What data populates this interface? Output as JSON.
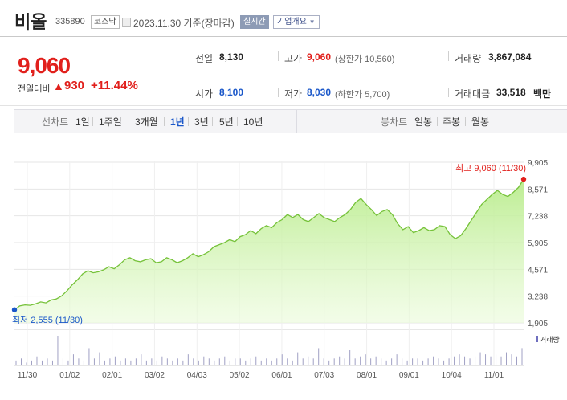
{
  "header": {
    "name": "비올",
    "code": "335890",
    "market": "코스닥",
    "base_date": "2023.11.30  기준(장마감)",
    "realtime_label": "실시간",
    "overview_label": "기업개요",
    "overview_caret": "▼"
  },
  "price": {
    "current": "9,060",
    "change_label": "전일대비",
    "change_arrow": "▲",
    "change_amount": "930",
    "change_rate": "+11.44%"
  },
  "stats": {
    "prev_close": {
      "label": "전일",
      "value": "8,130"
    },
    "high": {
      "label": "고가",
      "value": "9,060",
      "sub": "(상한가 10,560)"
    },
    "volume": {
      "label": "거래량",
      "value": "3,867,084"
    },
    "open": {
      "label": "시가",
      "value": "8,100"
    },
    "low": {
      "label": "저가",
      "value": "8,030",
      "sub": "(하한가 5,700)"
    },
    "trade_value": {
      "label": "거래대금",
      "value": "33,518",
      "unit": "백만"
    }
  },
  "tabs": {
    "line_label": "선차트",
    "periods": [
      "1일",
      "1주일",
      "3개월",
      "1년",
      "3년",
      "5년",
      "10년"
    ],
    "active_period": "1년",
    "candle_label": "봉차트",
    "candles": [
      "일봉",
      "주봉",
      "월봉"
    ]
  },
  "chart_data": {
    "type": "area",
    "y_ticks": [
      9905,
      8571,
      7238,
      5905,
      4571,
      3238,
      1905
    ],
    "y_tick_labels": [
      "9,905",
      "8,571",
      "7,238",
      "5,905",
      "4,571",
      "3,238",
      "1,905"
    ],
    "ylim": [
      1905,
      9905
    ],
    "x_tick_labels": [
      "11/30",
      "01/02",
      "02/01",
      "03/02",
      "04/03",
      "05/02",
      "06/01",
      "07/03",
      "08/01",
      "09/01",
      "10/04",
      "11/01"
    ],
    "series_values": [
      2555,
      2750,
      2800,
      2780,
      2850,
      2950,
      2900,
      3050,
      3100,
      3250,
      3500,
      3800,
      4050,
      4350,
      4500,
      4400,
      4450,
      4550,
      4700,
      4600,
      4800,
      5050,
      5150,
      5000,
      4950,
      5050,
      5100,
      4900,
      4950,
      5150,
      5050,
      4900,
      5000,
      5150,
      5350,
      5200,
      5300,
      5450,
      5700,
      5800,
      5900,
      6050,
      5950,
      6200,
      6300,
      6500,
      6350,
      6600,
      6750,
      6650,
      6900,
      7050,
      7300,
      7150,
      7300,
      7050,
      6950,
      7150,
      7350,
      7150,
      7050,
      6950,
      7150,
      7300,
      7550,
      7900,
      8100,
      7800,
      7550,
      7250,
      7450,
      7550,
      7300,
      6850,
      6550,
      6700,
      6400,
      6500,
      6650,
      6500,
      6550,
      6750,
      6700,
      6300,
      6100,
      6250,
      6600,
      7000,
      7400,
      7800,
      8050,
      8300,
      8500,
      8300,
      8200,
      8400,
      8650,
      9060
    ],
    "volume_values": [
      2,
      3,
      1,
      2,
      4,
      2,
      3,
      2,
      14,
      3,
      2,
      5,
      3,
      2,
      8,
      3,
      6,
      2,
      3,
      4,
      2,
      3,
      2,
      3,
      5,
      2,
      3,
      2,
      4,
      3,
      2,
      3,
      2,
      5,
      3,
      2,
      4,
      3,
      2,
      3,
      4,
      2,
      3,
      3,
      2,
      3,
      4,
      2,
      3,
      2,
      3,
      5,
      3,
      2,
      6,
      3,
      4,
      3,
      8,
      3,
      2,
      3,
      4,
      3,
      7,
      3,
      4,
      5,
      3,
      4,
      3,
      2,
      3,
      5,
      3,
      2,
      3,
      3,
      2,
      3,
      4,
      3,
      2,
      3,
      4,
      5,
      4,
      3,
      4,
      6,
      5,
      4,
      5,
      4,
      6,
      5,
      4,
      8
    ],
    "high_label": "최고  9,060 (11/30)",
    "low_label": "최저  2,555 (11/30)",
    "volume_legend": "거래량",
    "line_color": "#76c23a",
    "fill_color": "#b9ec8c",
    "marker_high_color": "#e1201c",
    "marker_low_color": "#1a57c9"
  }
}
